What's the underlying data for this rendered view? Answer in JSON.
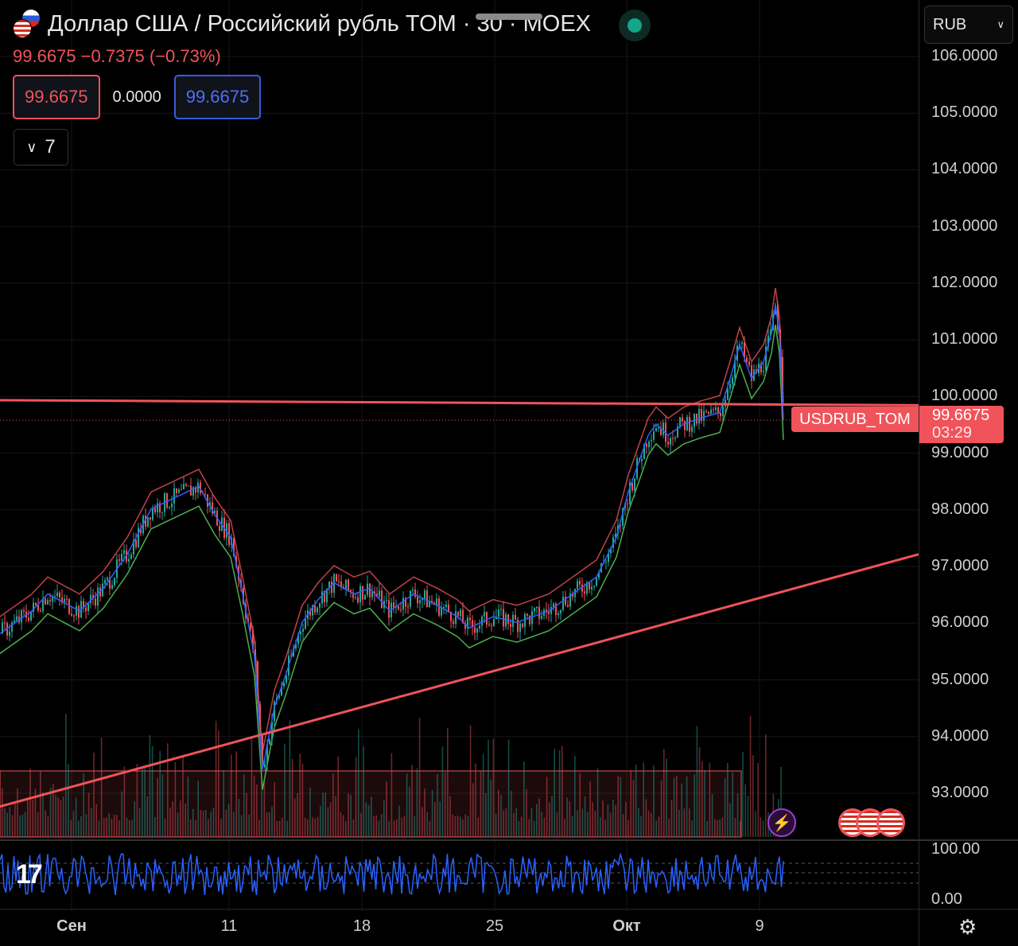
{
  "header": {
    "title": "Доллар США / Российский рубль TOM · 30 · MOEX",
    "change": "99.6675  −0.7375 (−0.73%)",
    "bid": "99.6675",
    "spread": "0.0000",
    "ask": "99.6675",
    "indicators_toggle": "7"
  },
  "currency_select": "RUB",
  "price_tag": {
    "symbol": "USDRUB_TOM",
    "price": "99.6675",
    "countdown": "03:29"
  },
  "oscillator_scale": [
    "100.00",
    "0.00"
  ],
  "colors": {
    "up": "#26a69a",
    "down": "#f0535a",
    "accent": "#3a5bdc",
    "trail_green": "#4caf50"
  },
  "chart_data": {
    "type": "candlestick",
    "title": "USDRUB_TOM 30m MOEX",
    "xlabel": "",
    "ylabel": "RUB",
    "ylim": [
      92.5,
      106.4
    ],
    "xlim": [
      0,
      115.5
    ],
    "yticks": [
      "106.0000",
      "105.0000",
      "104.0000",
      "103.0000",
      "102.0000",
      "101.0000",
      "100.0000",
      "99.0000",
      "98.0000",
      "97.0000",
      "96.0000",
      "95.0000",
      "94.0000",
      "93.0000"
    ],
    "xticks": [
      {
        "t": 9,
        "label": "Сен",
        "bold": true
      },
      {
        "t": 28.8,
        "label": "11"
      },
      {
        "t": 45.5,
        "label": "18"
      },
      {
        "t": 62.2,
        "label": "25"
      },
      {
        "t": 78.8,
        "label": "Окт",
        "bold": true
      },
      {
        "t": 95.5,
        "label": "9"
      }
    ],
    "price": [
      [
        0,
        95.9
      ],
      [
        4,
        96.3
      ],
      [
        6,
        96.6
      ],
      [
        10,
        96.3
      ],
      [
        13,
        96.7
      ],
      [
        16,
        97.3
      ],
      [
        19,
        98.1
      ],
      [
        22,
        98.3
      ],
      [
        25,
        98.5
      ],
      [
        27,
        98.0
      ],
      [
        29,
        97.6
      ],
      [
        30.5,
        96.6
      ],
      [
        32,
        95.5
      ],
      [
        33,
        93.5
      ],
      [
        34.5,
        94.6
      ],
      [
        36,
        95.2
      ],
      [
        38,
        96.1
      ],
      [
        40,
        96.5
      ],
      [
        42,
        96.8
      ],
      [
        44.5,
        96.6
      ],
      [
        46.5,
        96.7
      ],
      [
        49,
        96.3
      ],
      [
        52,
        96.6
      ],
      [
        55,
        96.4
      ],
      [
        57.5,
        96.2
      ],
      [
        59,
        96.0
      ],
      [
        62,
        96.2
      ],
      [
        65,
        96.1
      ],
      [
        69,
        96.3
      ],
      [
        72,
        96.6
      ],
      [
        75,
        96.9
      ],
      [
        77.5,
        97.6
      ],
      [
        79,
        98.4
      ],
      [
        80.5,
        99.0
      ],
      [
        81.5,
        99.4
      ],
      [
        82.5,
        99.6
      ],
      [
        84,
        99.4
      ],
      [
        86,
        99.6
      ],
      [
        88,
        99.7
      ],
      [
        90.5,
        99.8
      ],
      [
        92,
        100.5
      ],
      [
        93,
        101.0
      ],
      [
        94.5,
        100.4
      ],
      [
        96,
        100.7
      ],
      [
        97,
        101.2
      ],
      [
        97.5,
        101.7
      ],
      [
        98,
        101.2
      ],
      [
        98.5,
        99.67
      ]
    ],
    "trendlines": [
      {
        "name": "resistance",
        "from": [
          0,
          100.02
        ],
        "to": [
          115.5,
          99.93
        ]
      },
      {
        "name": "support",
        "from": [
          0,
          92.85
        ],
        "to": [
          115.5,
          97.3
        ]
      }
    ],
    "last_price": 99.6675
  }
}
